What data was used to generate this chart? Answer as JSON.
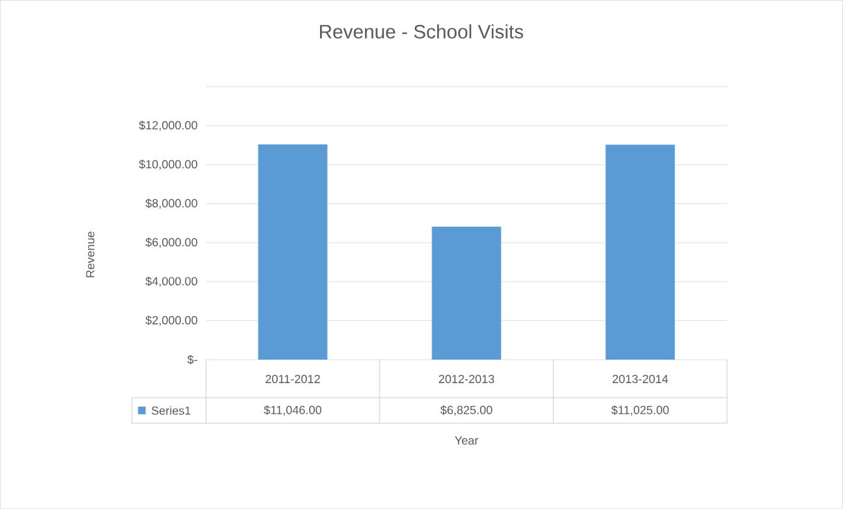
{
  "chart_data": {
    "type": "bar",
    "title": "Revenue - School Visits",
    "xlabel": "Year",
    "ylabel": "Revenue",
    "categories": [
      "2011-2012",
      "2012-2013",
      "2013-2014"
    ],
    "series": [
      {
        "name": "Series1",
        "color": "#5b9bd5",
        "values": [
          11046,
          6825,
          11025
        ],
        "value_labels": [
          "$11,046.00",
          "$6,825.00",
          "$11,025.00"
        ]
      }
    ],
    "ylim": [
      0,
      14000
    ],
    "yticks": [
      {
        "value": 0,
        "label": "$-"
      },
      {
        "value": 2000,
        "label": "$2,000.00"
      },
      {
        "value": 4000,
        "label": "$4,000.00"
      },
      {
        "value": 6000,
        "label": "$6,000.00"
      },
      {
        "value": 8000,
        "label": "$8,000.00"
      },
      {
        "value": 10000,
        "label": "$10,000.00"
      },
      {
        "value": 12000,
        "label": "$12,000.00"
      },
      {
        "value": 14000,
        "label": null
      }
    ],
    "grid": "y",
    "legend": "bottom"
  }
}
